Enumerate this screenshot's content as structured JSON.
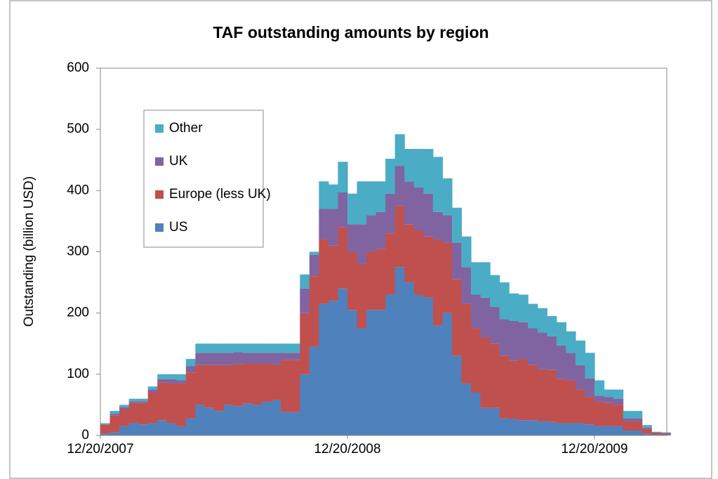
{
  "chart_data": {
    "type": "stacked-step-area",
    "title": "TAF outstanding amounts by region",
    "y_label": "Outstanding (billion USD)",
    "categories": [
      "12/20/2007",
      null,
      null,
      null,
      null,
      null,
      null,
      null,
      null,
      null,
      null,
      null,
      null,
      null,
      null,
      null,
      null,
      null,
      null,
      null,
      null,
      null,
      null,
      null,
      null,
      null,
      "12/20/2008",
      null,
      null,
      null,
      null,
      null,
      null,
      null,
      null,
      null,
      null,
      null,
      null,
      null,
      null,
      null,
      null,
      null,
      null,
      null,
      null,
      null,
      null,
      null,
      null,
      null,
      "12/20/2009",
      null,
      null,
      null,
      null,
      null,
      null,
      null
    ],
    "series": [
      {
        "name": "US",
        "color": "#4f81bd",
        "values": [
          3,
          5,
          15,
          20,
          18,
          20,
          25,
          20,
          15,
          28,
          50,
          45,
          40,
          50,
          48,
          52,
          50,
          55,
          58,
          38,
          38,
          100,
          145,
          215,
          220,
          240,
          205,
          175,
          205,
          205,
          230,
          275,
          250,
          230,
          225,
          180,
          200,
          130,
          85,
          70,
          45,
          45,
          28,
          27,
          25,
          25,
          23,
          22,
          20,
          20,
          20,
          18,
          15,
          15,
          15,
          8,
          8,
          3,
          1,
          1
        ]
      },
      {
        "name": "Europe (less UK)",
        "color": "#c0504d",
        "values": [
          15,
          28,
          28,
          33,
          35,
          50,
          62,
          65,
          70,
          75,
          65,
          70,
          75,
          65,
          68,
          65,
          67,
          62,
          58,
          85,
          85,
          100,
          115,
          105,
          90,
          100,
          95,
          105,
          95,
          100,
          100,
          100,
          95,
          105,
          100,
          140,
          115,
          125,
          130,
          105,
          115,
          105,
          102,
          95,
          100,
          90,
          85,
          85,
          72,
          70,
          55,
          45,
          40,
          38,
          35,
          15,
          15,
          8,
          3,
          2
        ]
      },
      {
        "name": "UK",
        "color": "#8064a2",
        "values": [
          0,
          2,
          3,
          3,
          3,
          5,
          5,
          7,
          5,
          10,
          20,
          20,
          20,
          20,
          20,
          18,
          18,
          18,
          19,
          12,
          12,
          40,
          35,
          50,
          60,
          57,
          45,
          65,
          60,
          60,
          65,
          65,
          70,
          70,
          70,
          45,
          45,
          60,
          60,
          55,
          65,
          60,
          60,
          65,
          60,
          60,
          60,
          55,
          55,
          45,
          40,
          30,
          10,
          10,
          10,
          5,
          5,
          2,
          1,
          1
        ]
      },
      {
        "name": "Other",
        "color": "#4bacc6",
        "values": [
          2,
          5,
          4,
          4,
          4,
          5,
          8,
          8,
          10,
          12,
          15,
          15,
          15,
          15,
          14,
          15,
          15,
          15,
          15,
          15,
          15,
          23,
          5,
          45,
          40,
          50,
          50,
          70,
          55,
          50,
          57,
          52,
          53,
          63,
          73,
          90,
          60,
          57,
          50,
          53,
          58,
          52,
          60,
          45,
          45,
          40,
          40,
          33,
          38,
          35,
          40,
          42,
          25,
          12,
          15,
          12,
          12,
          4,
          1,
          1
        ]
      }
    ],
    "ylim": [
      0,
      600
    ],
    "yticks": [
      0,
      100,
      200,
      300,
      400,
      500,
      600
    ],
    "legend": "upper-left"
  }
}
